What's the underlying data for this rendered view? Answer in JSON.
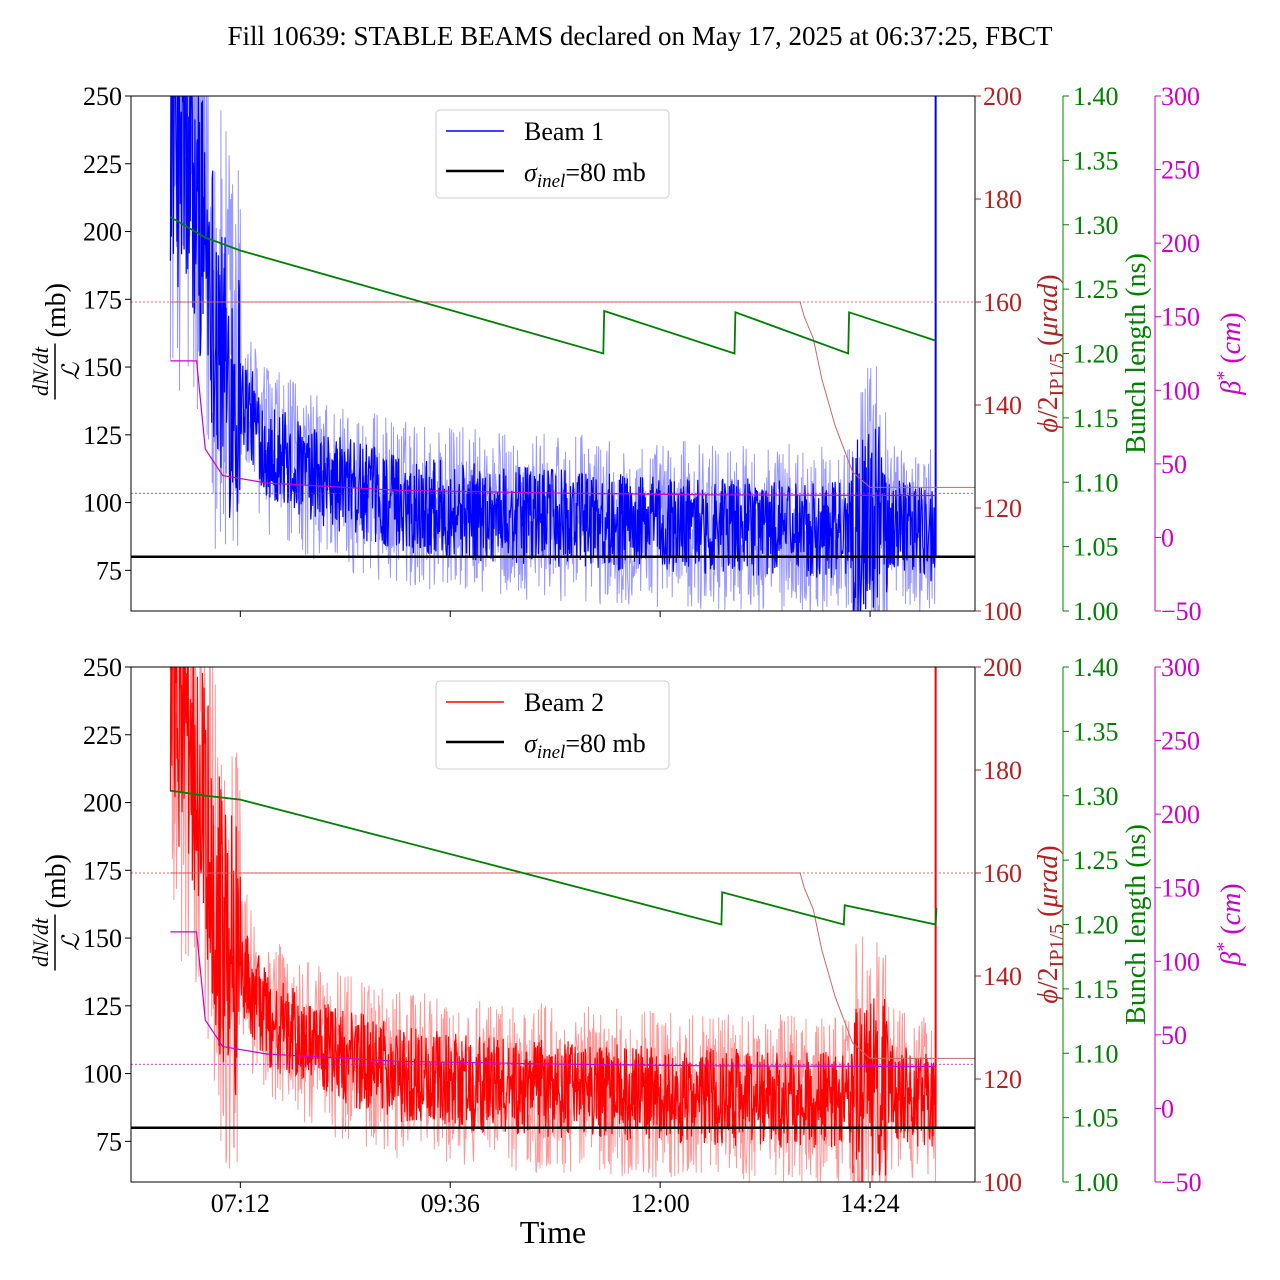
{
  "chart_data": {
    "type": "line",
    "title": "Fill 10639: STABLE BEAMS declared on May 17, 2025 at 06:37:25, FBCT",
    "xlabel": "Time",
    "x_ticks": [
      "07:12",
      "09:36",
      "12:00",
      "14:24"
    ],
    "x_range_hours": [
      5.95,
      15.6
    ],
    "x_tick_hours": [
      7.2,
      9.6,
      12.0,
      14.4
    ],
    "sigma_inel_mb": 80,
    "panels": [
      {
        "beam": "Beam 1",
        "color": "#0000ff",
        "light_color": "#9999ff",
        "legend": [
          "Beam 1",
          "σinel=80 mb"
        ],
        "crossing_angle_urad": [
          [
            6.4,
            160
          ],
          [
            13.6,
            160
          ],
          [
            13.65,
            157
          ],
          [
            13.75,
            153
          ],
          [
            13.85,
            145
          ],
          [
            14.0,
            136
          ],
          [
            14.2,
            127
          ],
          [
            14.4,
            124
          ],
          [
            15.6,
            124
          ]
        ],
        "bunch_length_ns": [
          [
            6.4,
            1.306
          ],
          [
            6.8,
            1.29
          ],
          [
            7.2,
            1.28
          ],
          [
            11.35,
            1.2
          ],
          [
            11.36,
            1.233
          ],
          [
            12.85,
            1.2
          ],
          [
            12.86,
            1.232
          ],
          [
            14.15,
            1.2
          ],
          [
            14.16,
            1.232
          ],
          [
            15.15,
            1.21
          ]
        ],
        "beta_star_cm": [
          [
            6.4,
            120
          ],
          [
            6.7,
            120
          ],
          [
            6.8,
            60
          ],
          [
            7.0,
            42
          ],
          [
            7.5,
            37
          ],
          [
            9.0,
            32
          ],
          [
            11.0,
            30
          ],
          [
            12.5,
            29
          ],
          [
            15.15,
            28.5
          ]
        ]
      },
      {
        "beam": "Beam 2",
        "color": "#ff0000",
        "light_color": "#ff9999",
        "legend": [
          "Beam 2",
          "σinel=80 mb"
        ],
        "crossing_angle_urad": [
          [
            6.4,
            160
          ],
          [
            13.6,
            160
          ],
          [
            13.65,
            157
          ],
          [
            13.75,
            153
          ],
          [
            13.85,
            145
          ],
          [
            14.0,
            136
          ],
          [
            14.2,
            127
          ],
          [
            14.4,
            124
          ],
          [
            15.6,
            124
          ]
        ],
        "bunch_length_ns": [
          [
            6.4,
            1.304
          ],
          [
            6.8,
            1.3
          ],
          [
            7.2,
            1.297
          ],
          [
            12.7,
            1.2
          ],
          [
            12.71,
            1.225
          ],
          [
            14.1,
            1.2
          ],
          [
            14.11,
            1.215
          ],
          [
            15.15,
            1.2
          ],
          [
            15.16,
            1.213
          ]
        ],
        "beta_star_cm": [
          [
            6.4,
            120
          ],
          [
            6.7,
            120
          ],
          [
            6.8,
            60
          ],
          [
            7.0,
            42
          ],
          [
            7.5,
            37
          ],
          [
            9.0,
            32
          ],
          [
            11.0,
            30
          ],
          [
            12.5,
            29
          ],
          [
            15.15,
            28.5
          ]
        ]
      }
    ],
    "noise_envelope": {
      "time_hours": [
        6.4,
        6.8,
        7.0,
        7.2,
        7.5,
        8.0,
        9.0,
        10.0,
        11.0,
        12.0,
        13.0,
        14.0,
        14.5,
        15.0,
        15.15
      ],
      "mean_mb": [
        240,
        200,
        150,
        140,
        120,
        110,
        100,
        96,
        94,
        92,
        91,
        90,
        95,
        90,
        88
      ]
    },
    "axes": {
      "left": {
        "label": "dN/dt / ℒ (mb)",
        "range": [
          60,
          250
        ],
        "ticks": [
          75,
          100,
          125,
          150,
          175,
          200,
          225,
          250
        ],
        "color": "#000000"
      },
      "crossing_angle": {
        "label": "ϕ/2IP1/5 (μrad)",
        "range": [
          100,
          200
        ],
        "ticks": [
          100,
          120,
          140,
          160,
          180,
          200
        ],
        "color": "#b22222"
      },
      "bunch_length": {
        "label": "Bunch length (ns)",
        "range": [
          1.0,
          1.4
        ],
        "ticks": [
          1.0,
          1.05,
          1.1,
          1.15,
          1.2,
          1.25,
          1.3,
          1.35,
          1.4
        ],
        "tick_labels": [
          "1.00",
          "1.05",
          "1.10",
          "1.15",
          "1.20",
          "1.25",
          "1.30",
          "1.35",
          "1.40"
        ],
        "color": "#008000"
      },
      "beta_star": {
        "label": "β* (cm)",
        "range": [
          -50,
          300
        ],
        "ticks": [
          -50,
          0,
          50,
          100,
          150,
          200,
          250,
          300
        ],
        "tick_labels": [
          "−50",
          "0",
          "50",
          "100",
          "150",
          "200",
          "250",
          "300"
        ],
        "color": "#cc00cc"
      }
    }
  }
}
